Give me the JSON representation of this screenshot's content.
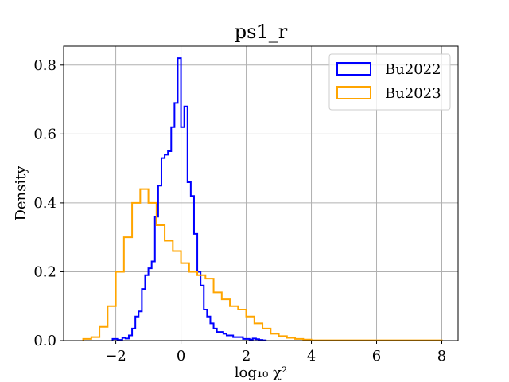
{
  "chart_data": {
    "type": "histogram",
    "title": "ps1_r",
    "xlabel": "log₁₀ χ²",
    "ylabel": "Density",
    "xlim": [
      -3.6,
      8.5
    ],
    "ylim": [
      0,
      0.855
    ],
    "xticks": [
      -2,
      0,
      2,
      4,
      6,
      8
    ],
    "xtick_labels": [
      "−2",
      "0",
      "2",
      "4",
      "6",
      "8"
    ],
    "yticks": [
      0.0,
      0.2,
      0.4,
      0.6,
      0.8
    ],
    "ytick_labels": [
      "0.0",
      "0.2",
      "0.4",
      "0.6",
      "0.8"
    ],
    "grid": true,
    "legend_position": "top-right",
    "series": [
      {
        "name": "Bu2022",
        "color": "#0000ff",
        "edges": [
          -2.1,
          -1.95,
          -1.8,
          -1.7,
          -1.6,
          -1.5,
          -1.4,
          -1.3,
          -1.2,
          -1.1,
          -1.0,
          -0.9,
          -0.8,
          -0.7,
          -0.6,
          -0.5,
          -0.4,
          -0.3,
          -0.2,
          -0.1,
          0.0,
          0.1,
          0.2,
          0.3,
          0.4,
          0.5,
          0.6,
          0.7,
          0.8,
          0.9,
          1.0,
          1.1,
          1.2,
          1.3,
          1.4,
          1.5,
          1.6,
          1.7,
          1.8,
          1.9,
          2.0,
          2.1,
          2.2,
          2.3,
          2.4,
          2.5,
          2.6
        ],
        "values": [
          0.005,
          0.002,
          0.008,
          0.006,
          0.015,
          0.035,
          0.07,
          0.085,
          0.15,
          0.19,
          0.21,
          0.23,
          0.36,
          0.45,
          0.53,
          0.54,
          0.55,
          0.62,
          0.69,
          0.82,
          0.62,
          0.68,
          0.46,
          0.42,
          0.31,
          0.2,
          0.16,
          0.09,
          0.07,
          0.05,
          0.035,
          0.025,
          0.025,
          0.02,
          0.015,
          0.015,
          0.01,
          0.01,
          0.01,
          0.005,
          0.005,
          0.003,
          0.006,
          0.004,
          0.002,
          0.001
        ]
      },
      {
        "name": "Bu2023",
        "color": "#ffa500",
        "edges": [
          -3.0,
          -2.75,
          -2.5,
          -2.25,
          -2.0,
          -1.75,
          -1.5,
          -1.25,
          -1.0,
          -0.75,
          -0.5,
          -0.25,
          0.0,
          0.25,
          0.5,
          0.75,
          1.0,
          1.25,
          1.5,
          1.75,
          2.0,
          2.25,
          2.5,
          2.75,
          3.0,
          3.25,
          3.5,
          3.75,
          4.0,
          8.0
        ],
        "values": [
          0.005,
          0.01,
          0.04,
          0.1,
          0.2,
          0.3,
          0.4,
          0.44,
          0.4,
          0.335,
          0.29,
          0.26,
          0.225,
          0.2,
          0.19,
          0.18,
          0.14,
          0.12,
          0.1,
          0.09,
          0.07,
          0.05,
          0.035,
          0.02,
          0.013,
          0.008,
          0.005,
          0.003,
          0.001
        ]
      }
    ]
  }
}
